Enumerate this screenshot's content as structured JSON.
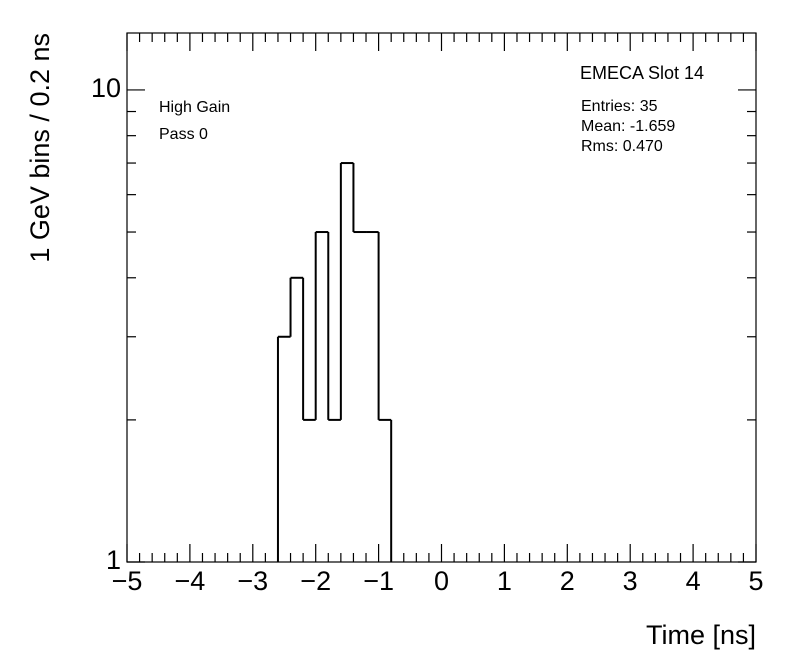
{
  "chart_data": {
    "type": "histogram",
    "title": "EMECA Slot 14",
    "annotations": [
      "High Gain",
      "Pass 0"
    ],
    "stats": [
      "Entries: 35",
      "Mean: -1.659",
      "Rms: 0.470"
    ],
    "x_label": "Time [ns]",
    "y_label": "1 GeV bins / 0.2 ns",
    "bins": [
      -2.6,
      -2.4,
      -2.2,
      -2.0,
      -1.8,
      -1.6,
      -1.4,
      -1.2,
      -1.0,
      -0.8
    ],
    "values": [
      3,
      4,
      2,
      5,
      2,
      7,
      5,
      5,
      2
    ],
    "color": "#000000",
    "xlim": [
      -5,
      5
    ],
    "xticks": [
      {
        "value": -5,
        "label": "−5"
      },
      {
        "value": -4,
        "label": "−4"
      },
      {
        "value": -3,
        "label": "−3"
      },
      {
        "value": -2,
        "label": "−2"
      },
      {
        "value": -1,
        "label": "−1"
      },
      0,
      1,
      2,
      3,
      4,
      5
    ],
    "ylim": [
      1,
      13.2
    ],
    "yticks": [
      1,
      10
    ],
    "y_log": true
  }
}
